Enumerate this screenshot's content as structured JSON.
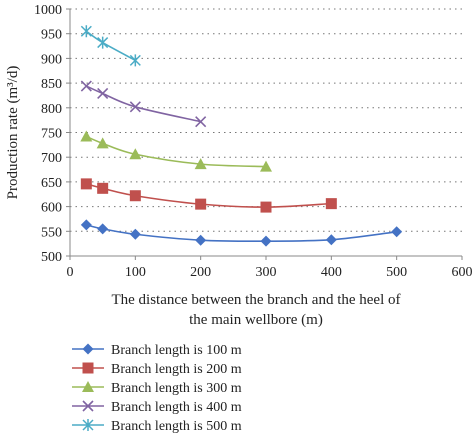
{
  "chart_data": {
    "type": "line",
    "xlabel_line1": "The distance between the branch and the heel of",
    "xlabel_line2": "the main wellbore (m)",
    "ylabel": "Production rate (m³/d)",
    "xlim": [
      0,
      600
    ],
    "ylim": [
      500,
      1000
    ],
    "xticks": [
      0,
      100,
      200,
      300,
      400,
      500,
      600
    ],
    "yticks": [
      500,
      550,
      600,
      650,
      700,
      750,
      800,
      850,
      900,
      950,
      1000
    ],
    "grid": "horizontal dotted",
    "legend_position": "bottom",
    "series": [
      {
        "name": "Branch length is 100 m",
        "color": "#4472c4",
        "marker": "diamond",
        "x": [
          25,
          50,
          100,
          200,
          300,
          400,
          500
        ],
        "y": [
          563,
          555,
          544,
          532,
          530,
          533,
          549
        ]
      },
      {
        "name": "Branch length is 200 m",
        "color": "#c0504d",
        "marker": "square",
        "x": [
          25,
          50,
          100,
          200,
          300,
          400
        ],
        "y": [
          646,
          637,
          622,
          605,
          599,
          606
        ]
      },
      {
        "name": "Branch length is 300 m",
        "color": "#9bbb59",
        "marker": "triangle",
        "x": [
          25,
          50,
          100,
          200,
          300
        ],
        "y": [
          742,
          728,
          706,
          686,
          681
        ]
      },
      {
        "name": "Branch length is 400 m",
        "color": "#8064a2",
        "marker": "x",
        "x": [
          25,
          50,
          100,
          200
        ],
        "y": [
          844,
          829,
          802,
          772
        ]
      },
      {
        "name": "Branch length is 500 m",
        "color": "#4bacc6",
        "marker": "asterisk",
        "x": [
          25,
          50,
          100
        ],
        "y": [
          955,
          932,
          896
        ]
      }
    ]
  }
}
